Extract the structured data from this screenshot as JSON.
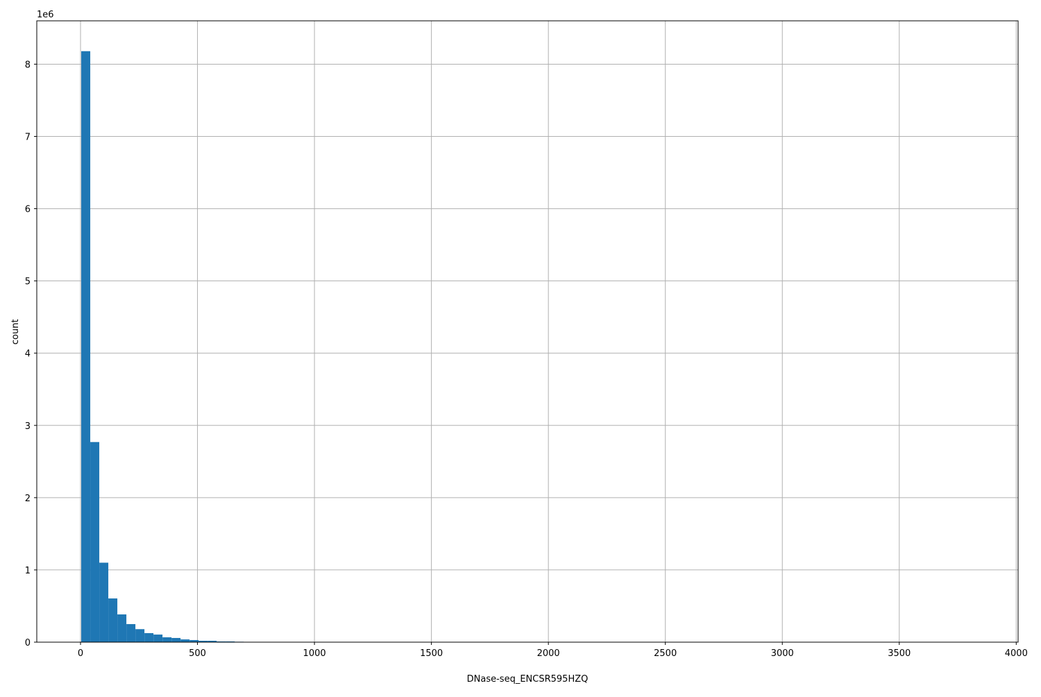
{
  "chart_data": {
    "type": "bar",
    "subtype": "histogram",
    "title": "",
    "xlabel": "DNase-seq_ENCSR595HZQ",
    "ylabel": "count",
    "y_offset_label": "1e6",
    "xlim": [
      -187,
      4008
    ],
    "ylim": [
      0,
      8600000
    ],
    "xticks": [
      0,
      500,
      1000,
      1500,
      2000,
      2500,
      3000,
      3500,
      4000
    ],
    "yticks": [
      0,
      1,
      2,
      3,
      4,
      5,
      6,
      7,
      8
    ],
    "ytick_scale": 1000000,
    "grid": true,
    "bar_color": "#1f77b4",
    "bin_start": 3,
    "bin_width": 38.6,
    "values": [
      8180000,
      2770000,
      1100000,
      605000,
      384000,
      250000,
      180000,
      125000,
      105000,
      67000,
      58000,
      38000,
      29000,
      19000,
      19000,
      10000,
      10000,
      6000,
      4000,
      3000,
      2000,
      1500,
      1000,
      800,
      600,
      400,
      300,
      200,
      150,
      100
    ]
  }
}
